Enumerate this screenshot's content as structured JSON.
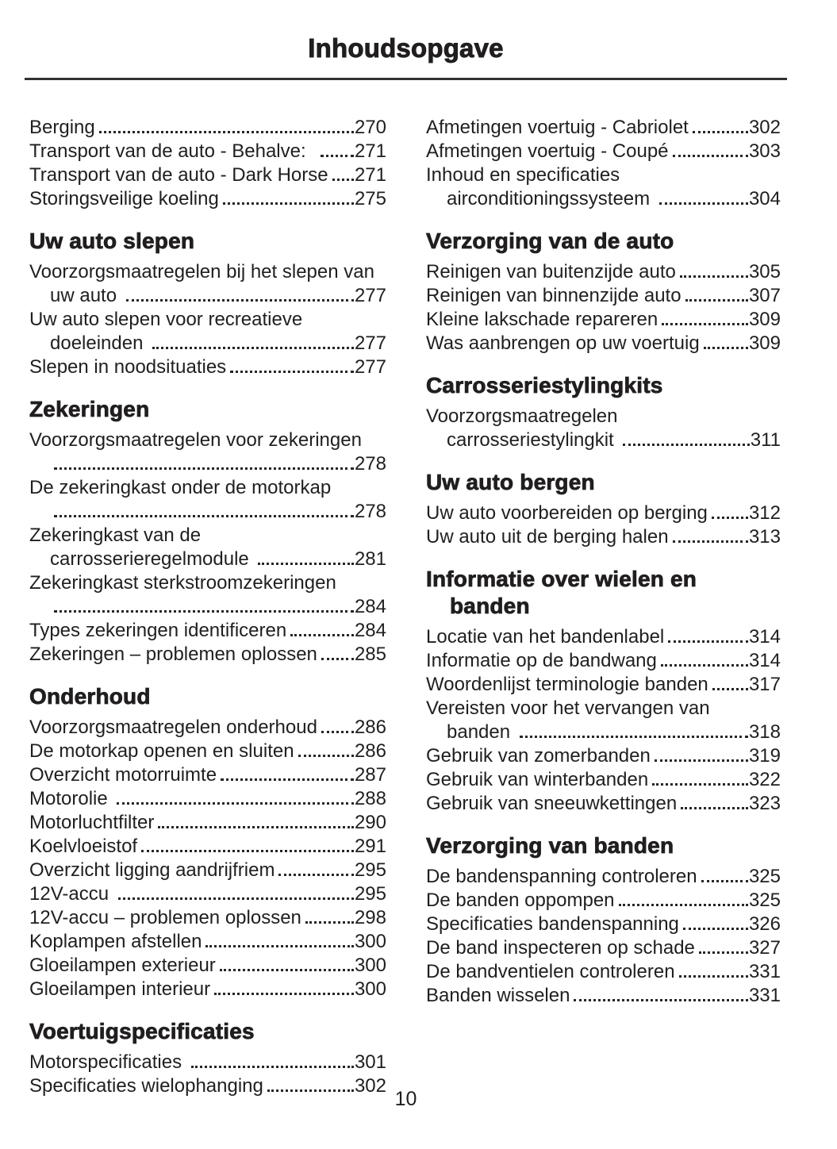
{
  "page": {
    "title": "Inhoudsopgave",
    "page_number": "10"
  },
  "toc": {
    "columns": [
      {
        "sections": [
          {
            "heading_lines": [],
            "items": [
              {
                "lines": [
                  "Berging"
                ],
                "page": "270"
              },
              {
                "lines": [
                  "Transport van de auto - Behalve:  "
                ],
                "page": "271"
              },
              {
                "lines": [
                  "Transport van de auto - Dark Horse"
                ],
                "page": "271"
              },
              {
                "lines": [
                  "Storingsveilige koeling"
                ],
                "page": "275"
              }
            ]
          },
          {
            "heading_lines": [
              "Uw auto slepen"
            ],
            "items": [
              {
                "lines": [
                  "Voorzorgsmaatregelen bij het slepen van",
                  "uw auto "
                ],
                "page": "277"
              },
              {
                "lines": [
                  "Uw auto slepen voor recreatieve",
                  "doeleinden "
                ],
                "page": "277"
              },
              {
                "lines": [
                  "Slepen in noodsituaties"
                ],
                "page": "277"
              }
            ]
          },
          {
            "heading_lines": [
              "Zekeringen"
            ],
            "items": [
              {
                "lines": [
                  "Voorzorgsmaatregelen voor zekeringen",
                  ""
                ],
                "page": "278"
              },
              {
                "lines": [
                  "De zekeringkast onder de motorkap",
                  ""
                ],
                "page": "278"
              },
              {
                "lines": [
                  "Zekeringkast van de",
                  "carrosserieregelmodule "
                ],
                "page": "281"
              },
              {
                "lines": [
                  "Zekeringkast sterkstroomzekeringen",
                  ""
                ],
                "page": "284"
              },
              {
                "lines": [
                  "Types zekeringen identificeren"
                ],
                "page": "284"
              },
              {
                "lines": [
                  "Zekeringen – problemen oplossen"
                ],
                "page": "285"
              }
            ]
          },
          {
            "heading_lines": [
              "Onderhoud"
            ],
            "items": [
              {
                "lines": [
                  "Voorzorgsmaatregelen onderhoud"
                ],
                "page": "286"
              },
              {
                "lines": [
                  "De motorkap openen en sluiten"
                ],
                "page": "286"
              },
              {
                "lines": [
                  "Overzicht motorruimte"
                ],
                "page": "287"
              },
              {
                "lines": [
                  "Motorolie "
                ],
                "page": "288"
              },
              {
                "lines": [
                  "Motorluchtfilter"
                ],
                "page": "290"
              },
              {
                "lines": [
                  "Koelvloeistof"
                ],
                "page": "291"
              },
              {
                "lines": [
                  "Overzicht ligging aandrijfriem"
                ],
                "page": "295"
              },
              {
                "lines": [
                  "12V-accu "
                ],
                "page": "295"
              },
              {
                "lines": [
                  "12V-accu – problemen oplossen"
                ],
                "page": "298"
              },
              {
                "lines": [
                  "Koplampen afstellen"
                ],
                "page": "300"
              },
              {
                "lines": [
                  "Gloeilampen exterieur"
                ],
                "page": "300"
              },
              {
                "lines": [
                  "Gloeilampen interieur"
                ],
                "page": "300"
              }
            ]
          },
          {
            "heading_lines": [
              "Voertuigspecificaties"
            ],
            "items": [
              {
                "lines": [
                  "Motorspecificaties "
                ],
                "page": "301"
              },
              {
                "lines": [
                  "Specificaties wielophanging"
                ],
                "page": "302"
              }
            ]
          }
        ]
      },
      {
        "sections": [
          {
            "heading_lines": [],
            "items": [
              {
                "lines": [
                  "Afmetingen voertuig - Cabriolet"
                ],
                "page": "302"
              },
              {
                "lines": [
                  "Afmetingen voertuig - Coupé"
                ],
                "page": "303"
              },
              {
                "lines": [
                  "Inhoud en specificaties",
                  "airconditioningssysteem "
                ],
                "page": "304"
              }
            ]
          },
          {
            "heading_lines": [
              "Verzorging van de auto"
            ],
            "items": [
              {
                "lines": [
                  "Reinigen van buitenzijde auto"
                ],
                "page": "305"
              },
              {
                "lines": [
                  "Reinigen van binnenzijde auto"
                ],
                "page": "307"
              },
              {
                "lines": [
                  "Kleine lakschade repareren"
                ],
                "page": "309"
              },
              {
                "lines": [
                  "Was aanbrengen op uw voertuig"
                ],
                "page": "309"
              }
            ]
          },
          {
            "heading_lines": [
              "Carrosseriestylingkits"
            ],
            "items": [
              {
                "lines": [
                  "Voorzorgsmaatregelen",
                  "carrosseriestylingkit "
                ],
                "page": "311"
              }
            ]
          },
          {
            "heading_lines": [
              "Uw auto bergen"
            ],
            "items": [
              {
                "lines": [
                  "Uw auto voorbereiden op berging"
                ],
                "page": "312"
              },
              {
                "lines": [
                  "Uw auto uit de berging halen"
                ],
                "page": "313"
              }
            ]
          },
          {
            "heading_lines": [
              "Informatie over wielen en",
              "banden"
            ],
            "items": [
              {
                "lines": [
                  "Locatie van het bandenlabel"
                ],
                "page": "314"
              },
              {
                "lines": [
                  "Informatie op de bandwang"
                ],
                "page": "314"
              },
              {
                "lines": [
                  "Woordenlijst terminologie banden"
                ],
                "page": "317"
              },
              {
                "lines": [
                  "Vereisten voor het vervangen van",
                  "banden "
                ],
                "page": "318"
              },
              {
                "lines": [
                  "Gebruik van zomerbanden"
                ],
                "page": "319"
              },
              {
                "lines": [
                  "Gebruik van winterbanden"
                ],
                "page": "322"
              },
              {
                "lines": [
                  "Gebruik van sneeuwkettingen"
                ],
                "page": "323"
              }
            ]
          },
          {
            "heading_lines": [
              "Verzorging van banden"
            ],
            "items": [
              {
                "lines": [
                  "De bandenspanning controleren"
                ],
                "page": "325"
              },
              {
                "lines": [
                  "De banden oppompen"
                ],
                "page": "325"
              },
              {
                "lines": [
                  "Specificaties bandenspanning"
                ],
                "page": "326"
              },
              {
                "lines": [
                  "De band inspecteren op schade"
                ],
                "page": "327"
              },
              {
                "lines": [
                  "De bandventielen controleren"
                ],
                "page": "331"
              },
              {
                "lines": [
                  "Banden wisselen"
                ],
                "page": "331"
              }
            ]
          }
        ]
      }
    ]
  }
}
